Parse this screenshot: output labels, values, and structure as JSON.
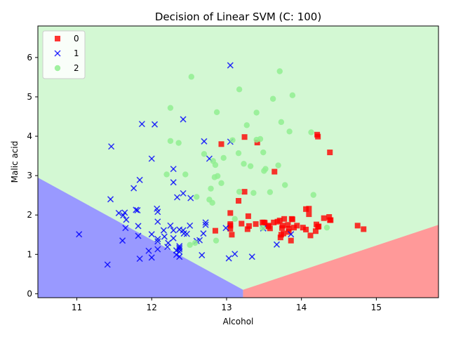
{
  "chart_data": {
    "type": "scatter",
    "title": "Decision of Linear SVM (C: 100)",
    "xlabel": "Alcohol",
    "ylabel": "Malic acid",
    "xlim": [
      10.48,
      15.83
    ],
    "ylim": [
      -0.1,
      6.8
    ],
    "xticks": [
      11,
      12,
      13,
      14,
      15
    ],
    "yticks": [
      0,
      1,
      2,
      3,
      4,
      5,
      6
    ],
    "grid": false,
    "legend_position": "top-left",
    "regions": {
      "vertex": [
        13.22,
        0.1
      ],
      "left_edge_point": [
        10.48,
        2.95
      ],
      "right_edge_point": [
        15.83,
        1.75
      ],
      "colors": {
        "0": "#ff9999",
        "1": "#9999ff",
        "2": "#d3f8d3"
      }
    },
    "series": [
      {
        "name": "0",
        "marker": "square",
        "color": "#ff0000",
        "points": [
          [
            14.23,
            1.71
          ],
          [
            13.2,
            1.78
          ],
          [
            13.16,
            2.36
          ],
          [
            14.37,
            1.95
          ],
          [
            13.24,
            2.59
          ],
          [
            14.2,
            1.76
          ],
          [
            14.39,
            1.87
          ],
          [
            14.06,
            2.15
          ],
          [
            14.83,
            1.64
          ],
          [
            13.86,
            1.35
          ],
          [
            14.1,
            2.16
          ],
          [
            14.12,
            1.48
          ],
          [
            13.75,
            1.73
          ],
          [
            14.75,
            1.73
          ],
          [
            14.38,
            1.87
          ],
          [
            13.63,
            1.81
          ],
          [
            14.3,
            1.92
          ],
          [
            13.83,
            1.57
          ],
          [
            14.19,
            1.59
          ],
          [
            13.64,
            3.1
          ],
          [
            14.06,
            1.63
          ],
          [
            12.93,
            3.8
          ],
          [
            13.71,
            1.86
          ],
          [
            12.85,
            1.6
          ],
          [
            13.5,
            1.81
          ],
          [
            13.05,
            2.05
          ],
          [
            13.39,
            1.77
          ],
          [
            13.3,
            1.72
          ],
          [
            13.87,
            1.9
          ],
          [
            14.02,
            1.68
          ],
          [
            13.73,
            1.5
          ],
          [
            13.58,
            1.66
          ],
          [
            13.68,
            1.83
          ],
          [
            13.76,
            1.53
          ],
          [
            13.51,
            1.8
          ],
          [
            13.48,
            1.81
          ],
          [
            13.28,
            1.64
          ],
          [
            13.05,
            1.65
          ],
          [
            13.07,
            1.5
          ],
          [
            14.22,
            3.99
          ],
          [
            13.56,
            1.71
          ],
          [
            13.41,
            3.84
          ],
          [
            13.88,
            1.89
          ],
          [
            13.24,
            3.98
          ],
          [
            13.05,
            1.77
          ],
          [
            14.21,
            4.04
          ],
          [
            14.38,
            3.59
          ],
          [
            13.9,
            1.68
          ],
          [
            14.1,
            2.02
          ],
          [
            13.94,
            1.73
          ],
          [
            13.05,
            1.73
          ],
          [
            13.83,
            1.65
          ],
          [
            13.82,
            1.75
          ],
          [
            13.77,
            1.9
          ],
          [
            13.74,
            1.67
          ],
          [
            13.56,
            1.73
          ],
          [
            14.22,
            1.7
          ],
          [
            13.29,
            1.97
          ],
          [
            13.72,
            1.43
          ]
        ]
      },
      {
        "name": "1",
        "marker": "x",
        "color": "#0000ff",
        "points": [
          [
            12.37,
            0.94
          ],
          [
            12.33,
            1.1
          ],
          [
            12.64,
            1.36
          ],
          [
            13.67,
            1.25
          ],
          [
            12.37,
            1.13
          ],
          [
            12.17,
            1.45
          ],
          [
            12.37,
            1.21
          ],
          [
            13.11,
            1.01
          ],
          [
            12.37,
            1.17
          ],
          [
            13.34,
            0.94
          ],
          [
            12.21,
            1.19
          ],
          [
            12.29,
            1.61
          ],
          [
            13.86,
            1.51
          ],
          [
            13.49,
            1.66
          ],
          [
            12.99,
            1.67
          ],
          [
            11.96,
            1.09
          ],
          [
            11.66,
            1.88
          ],
          [
            13.03,
            0.9
          ],
          [
            11.84,
            2.89
          ],
          [
            12.33,
            0.99
          ],
          [
            12.7,
            3.87
          ],
          [
            12.0,
            0.92
          ],
          [
            12.72,
            1.81
          ],
          [
            12.08,
            1.13
          ],
          [
            13.05,
            3.86
          ],
          [
            11.84,
            0.89
          ],
          [
            12.67,
            0.98
          ],
          [
            12.16,
            1.61
          ],
          [
            11.65,
            1.67
          ],
          [
            11.64,
            2.06
          ],
          [
            12.08,
            1.33
          ],
          [
            12.08,
            1.83
          ],
          [
            12.0,
            1.51
          ],
          [
            12.69,
            1.53
          ],
          [
            12.29,
            2.83
          ],
          [
            11.62,
            1.99
          ],
          [
            12.47,
            1.52
          ],
          [
            11.81,
            2.12
          ],
          [
            12.29,
            1.41
          ],
          [
            12.37,
            1.07
          ],
          [
            12.29,
            3.17
          ],
          [
            12.08,
            2.08
          ],
          [
            12.6,
            1.34
          ],
          [
            12.34,
            2.45
          ],
          [
            11.82,
            1.72
          ],
          [
            12.51,
            1.73
          ],
          [
            12.42,
            2.55
          ],
          [
            12.25,
            1.73
          ],
          [
            12.72,
            1.75
          ],
          [
            12.22,
            1.29
          ],
          [
            11.61,
            1.35
          ],
          [
            11.46,
            3.74
          ],
          [
            12.52,
            2.43
          ],
          [
            11.76,
            2.68
          ],
          [
            11.41,
            0.74
          ],
          [
            12.08,
            1.39
          ],
          [
            11.03,
            1.51
          ],
          [
            11.82,
            1.47
          ],
          [
            12.42,
            1.61
          ],
          [
            12.77,
            3.43
          ],
          [
            12.0,
            3.43
          ],
          [
            11.45,
            2.4
          ],
          [
            11.56,
            2.05
          ],
          [
            12.42,
            4.43
          ],
          [
            13.05,
            5.8
          ],
          [
            11.87,
            4.31
          ],
          [
            12.07,
            2.16
          ],
          [
            12.43,
            1.53
          ],
          [
            11.79,
            2.13
          ],
          [
            12.37,
            1.63
          ],
          [
            12.04,
            4.3
          ]
        ]
      },
      {
        "name": "2",
        "marker": "circle",
        "color": "#90ee90",
        "points": [
          [
            12.86,
            1.35
          ],
          [
            12.88,
            2.99
          ],
          [
            12.81,
            2.31
          ],
          [
            12.7,
            3.55
          ],
          [
            12.51,
            1.24
          ],
          [
            12.6,
            2.46
          ],
          [
            12.25,
            4.72
          ],
          [
            12.53,
            5.51
          ],
          [
            13.49,
            3.59
          ],
          [
            12.84,
            2.96
          ],
          [
            12.93,
            2.81
          ],
          [
            13.36,
            2.56
          ],
          [
            13.52,
            3.17
          ],
          [
            13.62,
            4.95
          ],
          [
            12.25,
            3.88
          ],
          [
            13.16,
            3.57
          ],
          [
            13.88,
            5.04
          ],
          [
            12.87,
            4.61
          ],
          [
            13.32,
            3.24
          ],
          [
            13.08,
            3.9
          ],
          [
            13.5,
            3.12
          ],
          [
            12.79,
            2.67
          ],
          [
            13.11,
            1.9
          ],
          [
            13.23,
            3.3
          ],
          [
            12.58,
            1.29
          ],
          [
            13.17,
            5.19
          ],
          [
            13.84,
            4.12
          ],
          [
            12.45,
            3.03
          ],
          [
            14.34,
            1.68
          ],
          [
            13.48,
            1.67
          ],
          [
            12.36,
            3.83
          ],
          [
            13.69,
            3.26
          ],
          [
            12.85,
            3.27
          ],
          [
            12.96,
            3.45
          ],
          [
            13.78,
            2.76
          ],
          [
            13.73,
            4.36
          ],
          [
            13.45,
            3.93
          ],
          [
            12.82,
            3.37
          ],
          [
            13.58,
            2.58
          ],
          [
            13.4,
            4.6
          ],
          [
            12.2,
            3.03
          ],
          [
            12.77,
            2.39
          ],
          [
            14.16,
            2.51
          ],
          [
            13.71,
            5.65
          ],
          [
            13.4,
            3.91
          ],
          [
            13.27,
            4.28
          ],
          [
            13.17,
            2.59
          ],
          [
            14.13,
            4.1
          ]
        ]
      }
    ]
  }
}
